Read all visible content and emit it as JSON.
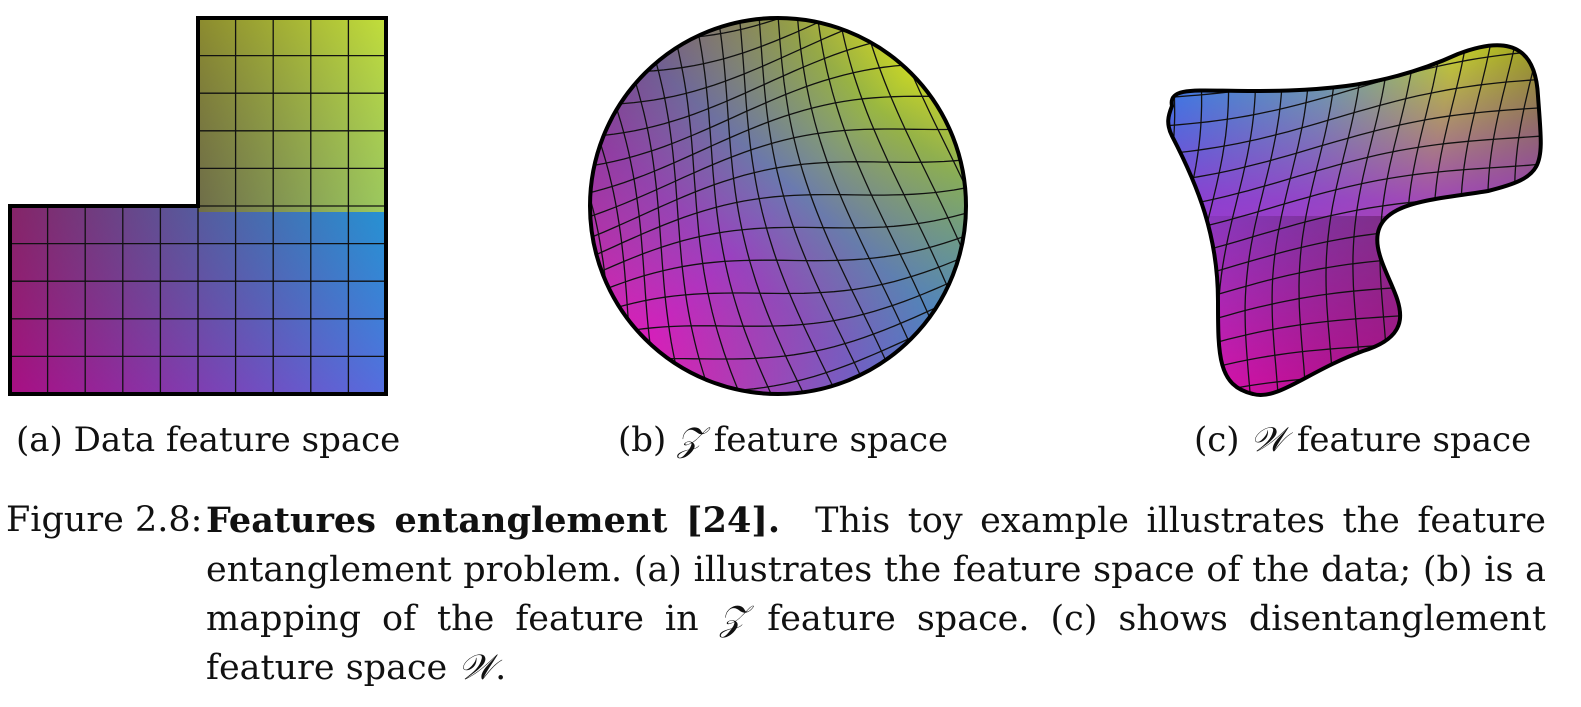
{
  "panels": [
    {
      "id": "a",
      "label": "(a)",
      "caption_pre": "Data feature space",
      "symbol": "",
      "caption_post": ""
    },
    {
      "id": "b",
      "label": "(b)",
      "caption_pre": "",
      "symbol": "𝒵",
      "caption_post": "feature space"
    },
    {
      "id": "c",
      "label": "(c)",
      "caption_pre": "",
      "symbol": "𝒲",
      "caption_post": "feature space"
    }
  ],
  "figure": {
    "label": "Figure 2.8:",
    "title": "Features entanglement [24].",
    "text_1": "This toy example illustrates the feature entanglement problem. (a) illustrates the feature space of the data; (b) is a mapping of the feature in ",
    "symbol_z": "𝒵",
    "text_2": " feature space. (c) shows disentanglement feature space ",
    "symbol_w": "𝒲",
    "text_3": "."
  },
  "colors": {
    "top_left": "#6e6a10",
    "top_right": "#f0f510",
    "bottom_left": "#f010b8",
    "bottom_right": "#0a9cf8",
    "left_mid": "#7a0a5a",
    "outline": "#000000"
  }
}
